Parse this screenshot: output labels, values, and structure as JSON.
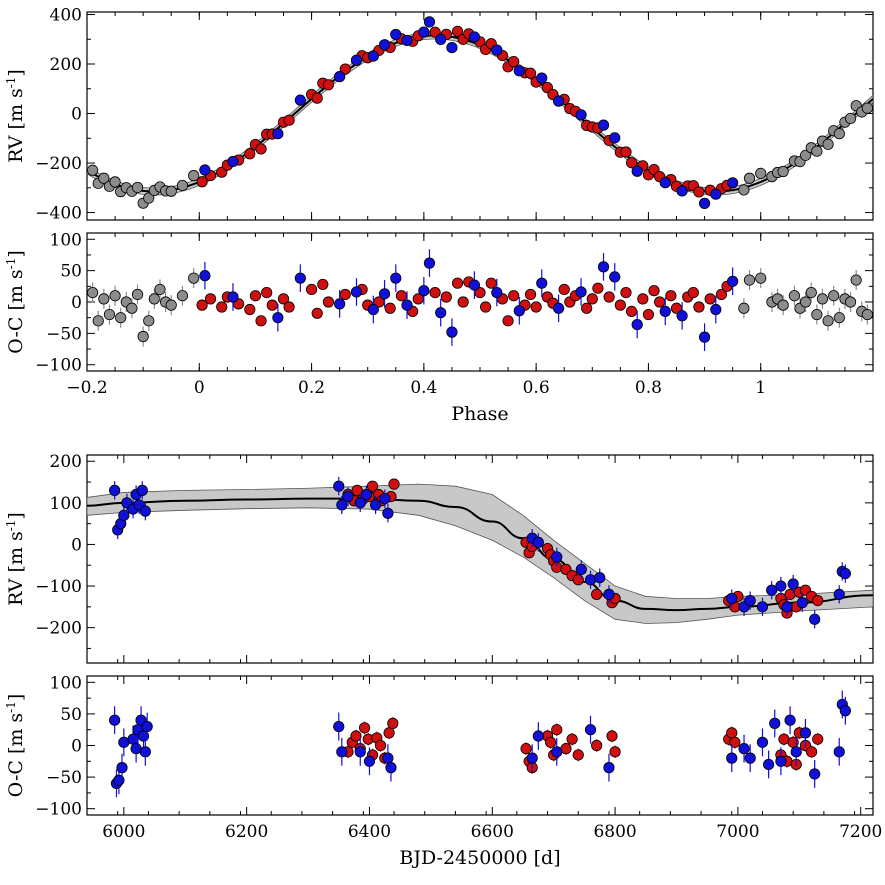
{
  "chart_data": [
    {
      "id": "phase-rv",
      "type": "scatter",
      "xlabel": "",
      "ylabel": "RV [m s-1]",
      "ylabel_main": "RV [m s",
      "ylabel_sup": "-1",
      "ylabel_close": "]",
      "xlim": [
        -0.2,
        1.2
      ],
      "ylim": [
        -430,
        410
      ],
      "xticks": [
        -0.2,
        0,
        0.2,
        0.4,
        0.6,
        0.8,
        1
      ],
      "xtick_labels": [
        "−0.2",
        "0",
        "0.2",
        "0.4",
        "0.6",
        "0.8",
        "1"
      ],
      "yticks": [
        -400,
        -200,
        0,
        200,
        400
      ],
      "ytick_labels": [
        "−400",
        "−200",
        "0",
        "200",
        "400"
      ],
      "model": {
        "type": "sinusoid",
        "amplitude": 315,
        "offset": 0,
        "peak_phase": 0.42,
        "band_halfwidth": 14
      },
      "series": [
        {
          "color": "#1010d8",
          "phases": [
            0.01,
            0.06,
            0.14,
            0.18,
            0.25,
            0.28,
            0.31,
            0.33,
            0.35,
            0.37,
            0.4,
            0.41,
            0.43,
            0.45,
            0.49,
            0.53,
            0.57,
            0.61,
            0.64,
            0.68,
            0.72,
            0.74,
            0.78,
            0.83,
            0.86,
            0.9,
            0.92,
            0.95
          ],
          "residuals": [
            42,
            8,
            -25,
            38,
            -3,
            16,
            -12,
            13,
            38,
            -5,
            18,
            62,
            -17,
            -48,
            27,
            15,
            -14,
            30,
            -10,
            16,
            56,
            40,
            -36,
            -15,
            -22,
            -56,
            -12,
            33
          ]
        },
        {
          "color": "#d01010",
          "phases": [
            0.005,
            0.02,
            0.04,
            0.05,
            0.07,
            0.09,
            0.1,
            0.11,
            0.12,
            0.13,
            0.15,
            0.16,
            0.2,
            0.21,
            0.22,
            0.23,
            0.26,
            0.29,
            0.3,
            0.32,
            0.34,
            0.36,
            0.38,
            0.39,
            0.42,
            0.44,
            0.46,
            0.47,
            0.48,
            0.5,
            0.51,
            0.52,
            0.54,
            0.55,
            0.56,
            0.58,
            0.59,
            0.6,
            0.62,
            0.63,
            0.65,
            0.66,
            0.67,
            0.69,
            0.7,
            0.71,
            0.73,
            0.75,
            0.76,
            0.77,
            0.79,
            0.8,
            0.81,
            0.82,
            0.84,
            0.85,
            0.87,
            0.88,
            0.89,
            0.91,
            0.93,
            0.94
          ],
          "residuals": [
            -5,
            5,
            -8,
            8,
            -3,
            -12,
            10,
            -30,
            15,
            -5,
            5,
            -8,
            20,
            -18,
            28,
            0,
            12,
            20,
            -5,
            0,
            -10,
            10,
            -15,
            5,
            15,
            8,
            30,
            0,
            32,
            15,
            -8,
            30,
            5,
            -30,
            10,
            -5,
            12,
            -8,
            8,
            -2,
            20,
            0,
            10,
            -10,
            5,
            22,
            8,
            -5,
            15,
            -15,
            5,
            -20,
            18,
            0,
            10,
            -10,
            8,
            15,
            -8,
            5,
            12,
            25
          ]
        },
        {
          "color": "#8c8c8c",
          "phases": [
            -0.19,
            -0.18,
            -0.17,
            -0.16,
            -0.15,
            -0.14,
            -0.13,
            -0.12,
            -0.11,
            -0.1,
            -0.09,
            -0.08,
            -0.07,
            -0.06,
            -0.05,
            -0.03,
            -0.01,
            0.97,
            0.98,
            1.0,
            1.02,
            1.03,
            1.04,
            1.06,
            1.07,
            1.08,
            1.09,
            1.1,
            1.11,
            1.12,
            1.13,
            1.14,
            1.15,
            1.16,
            1.17,
            1.18,
            1.19
          ],
          "residuals": [
            15,
            -30,
            5,
            -20,
            10,
            -25,
            0,
            -10,
            12,
            -55,
            -30,
            5,
            20,
            0,
            -5,
            10,
            38,
            -10,
            35,
            38,
            0,
            5,
            -5,
            10,
            -10,
            0,
            15,
            -20,
            5,
            -30,
            10,
            -25,
            5,
            0,
            35,
            -15,
            -20
          ]
        }
      ]
    },
    {
      "id": "phase-oc",
      "type": "scatter",
      "xlabel": "Phase",
      "ylabel": "O-C [m s-1]",
      "ylabel_main": "O-C [m s",
      "ylabel_sup": "-1",
      "ylabel_close": "]",
      "xlim": [
        -0.2,
        1.2
      ],
      "ylim": [
        -110,
        110
      ],
      "xticks": [
        -0.2,
        0,
        0.2,
        0.4,
        0.6,
        0.8,
        1
      ],
      "xtick_labels": [
        "−0.2",
        "0",
        "0.2",
        "0.4",
        "0.6",
        "0.8",
        "1"
      ],
      "yticks": [
        -100,
        -50,
        0,
        50,
        100
      ],
      "ytick_labels": [
        "−100",
        "−50",
        "0",
        "50",
        "100"
      ]
    },
    {
      "id": "time-rv",
      "type": "scatter",
      "xlabel": "",
      "ylabel": "RV [m s-1]",
      "ylabel_main": "RV [m s",
      "ylabel_sup": "-1",
      "ylabel_close": "]",
      "xlim": [
        5940,
        7220
      ],
      "ylim": [
        -285,
        215
      ],
      "xticks": [
        6000,
        6200,
        6400,
        6600,
        6800,
        7000,
        7200
      ],
      "xtick_labels": [
        "6000",
        "6200",
        "6400",
        "6600",
        "6800",
        "7000",
        "7200"
      ],
      "yticks": [
        -200,
        -100,
        0,
        100,
        200
      ],
      "ytick_labels": [
        "−200",
        "−100",
        "0",
        "100",
        "200"
      ],
      "model": {
        "x": [
          5940,
          6000,
          6100,
          6200,
          6300,
          6400,
          6480,
          6540,
          6600,
          6650,
          6700,
          6750,
          6800,
          6850,
          6900,
          6950,
          7000,
          7100,
          7220
        ],
        "y": [
          93,
          100,
          105,
          108,
          110,
          110,
          105,
          90,
          55,
          15,
          -35,
          -90,
          -135,
          -155,
          -158,
          -155,
          -150,
          -140,
          -122
        ],
        "band_upper": [
          113,
          125,
          130,
          132,
          135,
          140,
          145,
          140,
          120,
          70,
          10,
          -45,
          -100,
          -125,
          -130,
          -130,
          -125,
          -120,
          -110
        ],
        "band_lower": [
          70,
          77,
          82,
          86,
          88,
          85,
          70,
          45,
          10,
          -30,
          -80,
          -135,
          -180,
          -190,
          -188,
          -180,
          -170,
          -160,
          -150
        ]
      },
      "series": [
        {
          "color": "#1010d8",
          "x": [
            5985,
            5990,
            5995,
            6000,
            6005,
            6015,
            6020,
            6025,
            6030,
            6035,
            6350,
            6355,
            6365,
            6385,
            6395,
            6410,
            6425,
            6430,
            6665,
            6675,
            6705,
            6745,
            6760,
            6775,
            6790,
            6990,
            7010,
            7020,
            7040,
            7055,
            7070,
            7080,
            7090,
            7105,
            7125,
            7165,
            7170,
            7175
          ],
          "y": [
            130,
            35,
            50,
            70,
            100,
            85,
            120,
            95,
            130,
            80,
            140,
            95,
            115,
            100,
            120,
            95,
            110,
            75,
            15,
            5,
            -30,
            -60,
            -85,
            -80,
            -120,
            -130,
            -150,
            -135,
            -150,
            -110,
            -100,
            -150,
            -95,
            -140,
            -180,
            -120,
            -65,
            -70
          ]
        },
        {
          "color": "#d01010",
          "x": [
            6365,
            6375,
            6380,
            6390,
            6400,
            6405,
            6415,
            6420,
            6435,
            6440,
            6655,
            6660,
            6665,
            6690,
            6695,
            6700,
            6705,
            6720,
            6730,
            6740,
            6770,
            6795,
            6800,
            6985,
            6995,
            7000,
            7070,
            7075,
            7080,
            7085,
            7095,
            7100,
            7110,
            7120,
            7130
          ],
          "y": [
            120,
            105,
            130,
            110,
            115,
            140,
            120,
            105,
            115,
            145,
            5,
            -20,
            -5,
            -10,
            -25,
            -40,
            -55,
            -60,
            -75,
            -85,
            -120,
            -140,
            -130,
            -135,
            -150,
            -125,
            -130,
            -145,
            -165,
            -120,
            -150,
            -115,
            -110,
            -125,
            -135
          ]
        }
      ]
    },
    {
      "id": "time-oc",
      "type": "scatter",
      "xlabel": "BJD-2450000 [d]",
      "ylabel": "O-C [m s-1]",
      "ylabel_main": "O-C [m s",
      "ylabel_sup": "-1",
      "ylabel_close": "]",
      "xlim": [
        5940,
        7220
      ],
      "ylim": [
        -110,
        110
      ],
      "xticks": [
        6000,
        6200,
        6400,
        6600,
        6800,
        7000,
        7200
      ],
      "xtick_labels": [
        "6000",
        "6200",
        "6400",
        "6600",
        "6800",
        "7000",
        "7200"
      ],
      "yticks": [
        -100,
        -50,
        0,
        50,
        100
      ],
      "ytick_labels": [
        "−100",
        "−50",
        "0",
        "50",
        "100"
      ],
      "series": [
        {
          "color": "#1010d8",
          "x": [
            5985,
            5988,
            5992,
            5997,
            6000,
            6015,
            6020,
            6023,
            6028,
            6032,
            6035,
            6038,
            6350,
            6355,
            6385,
            6400,
            6430,
            6435,
            6665,
            6675,
            6705,
            6760,
            6790,
            6990,
            7010,
            7020,
            7040,
            7050,
            7060,
            7070,
            7085,
            7095,
            7110,
            7125,
            7165,
            7170,
            7175
          ],
          "y": [
            40,
            -60,
            -55,
            -35,
            5,
            10,
            -5,
            25,
            40,
            15,
            -10,
            30,
            30,
            -10,
            -10,
            -25,
            -20,
            -35,
            -20,
            15,
            -10,
            25,
            -35,
            -20,
            -5,
            -20,
            5,
            -30,
            35,
            -25,
            40,
            -10,
            20,
            -45,
            -10,
            65,
            55
          ]
        },
        {
          "color": "#d01010",
          "x": [
            6365,
            6372,
            6378,
            6385,
            6392,
            6398,
            6405,
            6412,
            6418,
            6425,
            6432,
            6438,
            6655,
            6660,
            6665,
            6690,
            6695,
            6700,
            6705,
            6720,
            6730,
            6740,
            6770,
            6795,
            6800,
            6985,
            6990,
            6995,
            7070,
            7075,
            7080,
            7090,
            7095,
            7100,
            7110,
            7120,
            7130
          ],
          "y": [
            -10,
            5,
            15,
            -5,
            28,
            10,
            -15,
            12,
            0,
            -20,
            20,
            35,
            -5,
            -25,
            -35,
            15,
            5,
            -15,
            25,
            -5,
            10,
            -15,
            0,
            15,
            -10,
            10,
            20,
            5,
            -15,
            10,
            -25,
            5,
            -30,
            20,
            0,
            -10,
            10
          ]
        }
      ]
    }
  ]
}
